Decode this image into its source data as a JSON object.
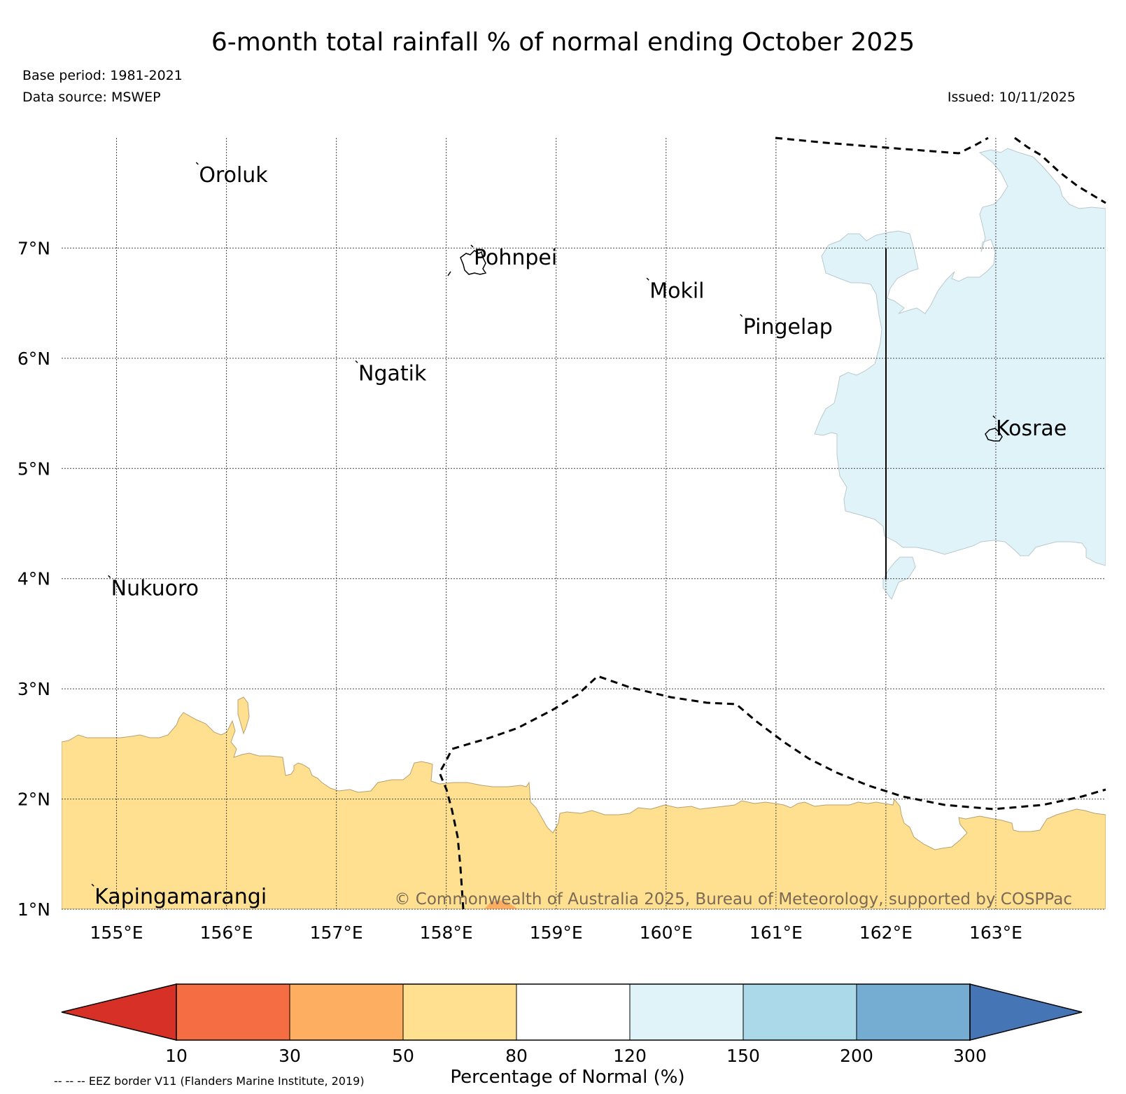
{
  "header": {
    "title": "6-month total rainfall % of normal ending October 2025",
    "base_period": "Base period: 1981-2021",
    "data_source": "Data source: MSWEP",
    "issued": "Issued: 10/11/2025"
  },
  "map": {
    "lon_range": [
      154.5,
      164.0
    ],
    "lat_range": [
      1.0,
      8.0
    ],
    "lat_ticks": [
      {
        "value": 7,
        "label": "7°N"
      },
      {
        "value": 6,
        "label": "6°N"
      },
      {
        "value": 5,
        "label": "5°N"
      },
      {
        "value": 4,
        "label": "4°N"
      },
      {
        "value": 3,
        "label": "3°N"
      },
      {
        "value": 2,
        "label": "2°N"
      },
      {
        "value": 1,
        "label": "1°N"
      }
    ],
    "lon_ticks": [
      {
        "value": 155,
        "label": "155°E"
      },
      {
        "value": 156,
        "label": "156°E"
      },
      {
        "value": 157,
        "label": "157°E"
      },
      {
        "value": 158,
        "label": "158°E"
      },
      {
        "value": 159,
        "label": "159°E"
      },
      {
        "value": 160,
        "label": "160°E"
      },
      {
        "value": 161,
        "label": "161°E"
      },
      {
        "value": 162,
        "label": "162°E"
      },
      {
        "value": 163,
        "label": "163°E"
      }
    ],
    "places": [
      {
        "name": "Oroluk",
        "lon": 155.75,
        "lat": 7.6
      },
      {
        "name": "Pohnpei",
        "lon": 158.25,
        "lat": 6.85
      },
      {
        "name": "Mokil",
        "lon": 159.85,
        "lat": 6.55
      },
      {
        "name": "Pingelap",
        "lon": 160.7,
        "lat": 6.22
      },
      {
        "name": "Ngatik",
        "lon": 157.2,
        "lat": 5.8
      },
      {
        "name": "Kosrae",
        "lon": 163.0,
        "lat": 5.3
      },
      {
        "name": "Nukuoro",
        "lon": 154.95,
        "lat": 3.85
      },
      {
        "name": "Kapingamarangi",
        "lon": 154.8,
        "lat": 1.05
      }
    ],
    "copyright": "© Commonwealth of Australia 2025, Bureau of Meteorology, supported by COSPPac"
  },
  "colorbar": {
    "bounds": [
      "10",
      "30",
      "50",
      "80",
      "120",
      "150",
      "200",
      "300"
    ],
    "colors": [
      "#d73027",
      "#f46d43",
      "#fdae61",
      "#fee090",
      "#ffffff",
      "#e0f3f8",
      "#abd9e9",
      "#74add1",
      "#4575b4"
    ],
    "label": "Percentage of Normal (%)"
  },
  "footnote": "-- -- -- EEZ border V11 (Flanders Marine Institute, 2019)"
}
